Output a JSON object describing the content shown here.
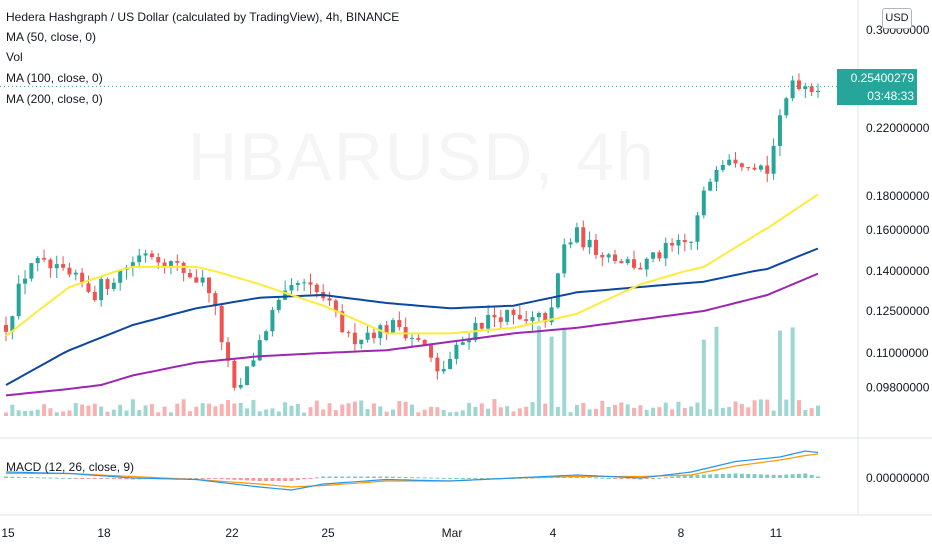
{
  "header": {
    "title": "Hedera Hashgraph / US Dollar (calculated by TradingView), 4h, BINANCE",
    "ma50": "MA (50, close, 0)",
    "vol": "Vol",
    "ma100": "MA (100, close, 0)",
    "ma200": "MA (200, close, 0)",
    "macd": "MACD (12, 26, close, 9)"
  },
  "watermark": "HBARUSD, 4h",
  "currency_button": "USD",
  "price_badge": "0.25400279",
  "timer_badge": "03:48:33",
  "colors": {
    "up": "#26a69a",
    "down": "#ef5350",
    "ma50": "#ffeb3b",
    "ma100": "#0d47a1",
    "ma200": "#9c27b0",
    "macd": "#2196f3",
    "signal": "#ff9800"
  },
  "chart_data": {
    "type": "candlestick",
    "price_ticks": [
      "0.30000000",
      "0.22000000",
      "0.18000000",
      "0.16000000",
      "0.14000000",
      "0.12500000",
      "0.11000000",
      "0.09800000"
    ],
    "macd_ticks": [
      "0.00000000"
    ],
    "x_ticks": [
      "15",
      "18",
      "22",
      "25",
      "Mar",
      "4",
      "8",
      "11"
    ],
    "last_price": 0.25400279,
    "price_path": [
      [
        0,
        0.12
      ],
      [
        4,
        0.145
      ],
      [
        8,
        0.14
      ],
      [
        14,
        0.132
      ],
      [
        18,
        0.14
      ],
      [
        22,
        0.15
      ],
      [
        27,
        0.142
      ],
      [
        32,
        0.134
      ],
      [
        36,
        0.096
      ],
      [
        38,
        0.104
      ],
      [
        42,
        0.124
      ],
      [
        46,
        0.135
      ],
      [
        50,
        0.13
      ],
      [
        54,
        0.115
      ],
      [
        58,
        0.118
      ],
      [
        62,
        0.12
      ],
      [
        66,
        0.112
      ],
      [
        68,
        0.103
      ],
      [
        70,
        0.108
      ],
      [
        74,
        0.12
      ],
      [
        78,
        0.124
      ],
      [
        82,
        0.12
      ],
      [
        86,
        0.124
      ],
      [
        88,
        0.152
      ],
      [
        90,
        0.158
      ],
      [
        92,
        0.152
      ],
      [
        96,
        0.147
      ],
      [
        100,
        0.142
      ],
      [
        104,
        0.15
      ],
      [
        108,
        0.154
      ],
      [
        110,
        0.18
      ],
      [
        112,
        0.2
      ],
      [
        114,
        0.205
      ],
      [
        116,
        0.202
      ],
      [
        118,
        0.2
      ],
      [
        120,
        0.195
      ],
      [
        122,
        0.225
      ],
      [
        124,
        0.26
      ],
      [
        126,
        0.255
      ],
      [
        128,
        0.254
      ]
    ],
    "ma50_path": [
      [
        0,
        0.116
      ],
      [
        10,
        0.134
      ],
      [
        20,
        0.142
      ],
      [
        30,
        0.142
      ],
      [
        40,
        0.135
      ],
      [
        50,
        0.127
      ],
      [
        60,
        0.117
      ],
      [
        70,
        0.117
      ],
      [
        80,
        0.119
      ],
      [
        90,
        0.124
      ],
      [
        100,
        0.135
      ],
      [
        110,
        0.142
      ],
      [
        120,
        0.161
      ],
      [
        128,
        0.181
      ]
    ],
    "ma100_path": [
      [
        0,
        0.1
      ],
      [
        10,
        0.111
      ],
      [
        20,
        0.12
      ],
      [
        30,
        0.126
      ],
      [
        40,
        0.13
      ],
      [
        50,
        0.131
      ],
      [
        60,
        0.128
      ],
      [
        70,
        0.126
      ],
      [
        80,
        0.127
      ],
      [
        90,
        0.132
      ],
      [
        100,
        0.134
      ],
      [
        110,
        0.136
      ],
      [
        120,
        0.141
      ],
      [
        128,
        0.151
      ]
    ],
    "ma200_path": [
      [
        0,
        0.092
      ],
      [
        10,
        0.097
      ],
      [
        20,
        0.103
      ],
      [
        30,
        0.107
      ],
      [
        40,
        0.109
      ],
      [
        50,
        0.11
      ],
      [
        60,
        0.111
      ],
      [
        70,
        0.114
      ],
      [
        80,
        0.117
      ],
      [
        90,
        0.119
      ],
      [
        100,
        0.122
      ],
      [
        110,
        0.125
      ],
      [
        120,
        0.131
      ],
      [
        128,
        0.139
      ]
    ],
    "macd_path": [
      [
        0,
        0.004
      ],
      [
        10,
        0.003
      ],
      [
        20,
        0.0
      ],
      [
        30,
        -0.001
      ],
      [
        40,
        -0.006
      ],
      [
        45,
        -0.008
      ],
      [
        50,
        -0.004
      ],
      [
        60,
        -0.001
      ],
      [
        70,
        -0.002
      ],
      [
        80,
        0.0
      ],
      [
        90,
        0.002
      ],
      [
        100,
        0.0
      ],
      [
        108,
        0.004
      ],
      [
        115,
        0.011
      ],
      [
        122,
        0.014
      ],
      [
        126,
        0.018
      ],
      [
        128,
        0.017
      ]
    ],
    "signal_path": [
      [
        0,
        0.003
      ],
      [
        10,
        0.003
      ],
      [
        20,
        0.001
      ],
      [
        30,
        -0.001
      ],
      [
        40,
        -0.004
      ],
      [
        45,
        -0.006
      ],
      [
        50,
        -0.005
      ],
      [
        60,
        -0.002
      ],
      [
        70,
        -0.002
      ],
      [
        80,
        0.0
      ],
      [
        90,
        0.001
      ],
      [
        100,
        0.001
      ],
      [
        108,
        0.002
      ],
      [
        115,
        0.008
      ],
      [
        122,
        0.012
      ],
      [
        126,
        0.015
      ],
      [
        128,
        0.016
      ]
    ]
  }
}
